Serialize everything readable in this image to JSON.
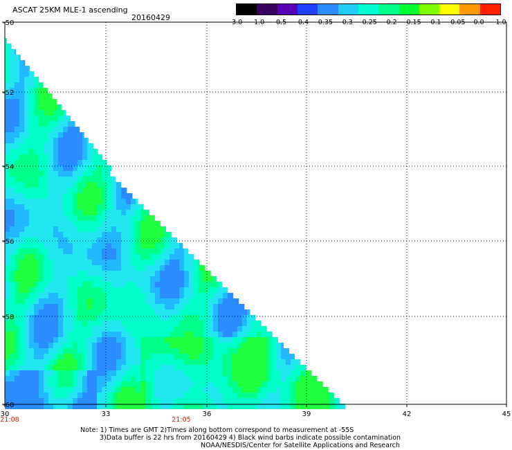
{
  "header": {
    "title": "ASCAT 25KM MLE-1 ascending",
    "date": "20160429"
  },
  "colorbar": {
    "labels": [
      "-3.0",
      "-1.0",
      "-0.5",
      "-0.4",
      "-0.35",
      "-0.3",
      "-0.25",
      "-0.2",
      "-0.15",
      "-0.1",
      "-0.05",
      "0.0",
      "1.0"
    ],
    "colors": [
      "#000000",
      "#3a0060",
      "#5a00b4",
      "#2040ff",
      "#2a8cff",
      "#22ccf4",
      "#00ffd2",
      "#00ff8a",
      "#00ff30",
      "#80ff00",
      "#ffff00",
      "#ff9900",
      "#ff2000"
    ]
  },
  "axes": {
    "x_ticks": [
      "30",
      "33",
      "36",
      "39",
      "42",
      "45"
    ],
    "y_ticks": [
      "-50",
      "-52",
      "-54",
      "-56",
      "-58",
      "-60"
    ],
    "time_labels": [
      "21:08",
      "21:05"
    ],
    "time_color": "#cc2200"
  },
  "notes": {
    "line1": "Note: 1) Times are GMT 2)Times along bottom correspond to measurement at -55S",
    "line2": "3)Data buffer is 22 hrs from 20160429 4) Black wind barbs indicate possible contamination",
    "line3": "NOAA/NESDIS/Center for Satellite Applications and Research"
  }
}
